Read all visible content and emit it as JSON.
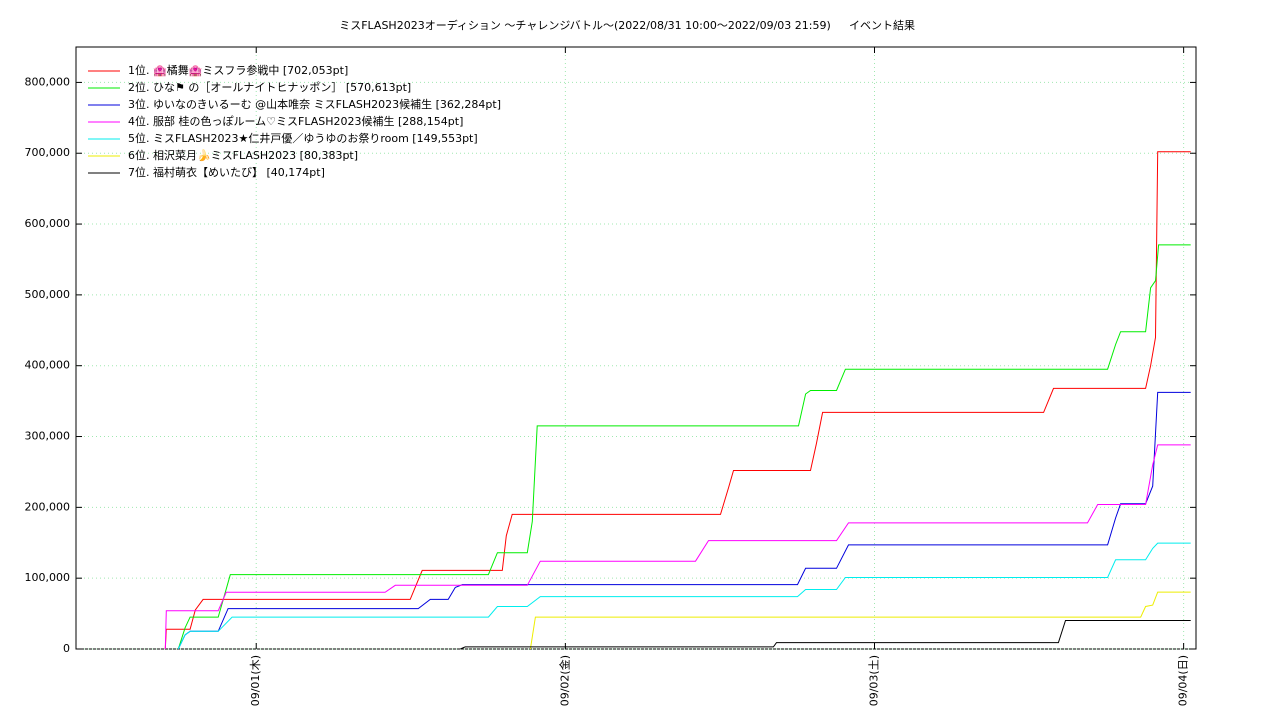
{
  "chart_data": {
    "type": "line",
    "title": "ミスFLASH2023オーディション 〜チャレンジバトル〜(2022/08/31 10:00〜2022/09/03 21:59)",
    "subtitle": "イベント結果",
    "xlim": [
      0.417,
      4.04
    ],
    "xticks": [
      {
        "value": 1,
        "label": "09/01(木)"
      },
      {
        "value": 2,
        "label": "09/02(金)"
      },
      {
        "value": 3,
        "label": "09/03(土)"
      },
      {
        "value": 4,
        "label": "09/04(日)"
      }
    ],
    "ylim": [
      0,
      850000
    ],
    "yticks": [
      {
        "value": 0,
        "label": "0"
      },
      {
        "value": 100000,
        "label": "100,000"
      },
      {
        "value": 200000,
        "label": "200,000"
      },
      {
        "value": 300000,
        "label": "300,000"
      },
      {
        "value": 400000,
        "label": "400,000"
      },
      {
        "value": 500000,
        "label": "500,000"
      },
      {
        "value": 600000,
        "label": "600,000"
      },
      {
        "value": 700000,
        "label": "700,000"
      },
      {
        "value": 800000,
        "label": "800,000"
      }
    ],
    "grid": true,
    "legend": "top-left",
    "series": [
      {
        "name": "1位. 🏩橘舞🏩ミスフラ参戦中 [702,053pt]",
        "color": "#ff0000",
        "x": [
          0.706,
          0.709,
          0.786,
          0.803,
          0.828,
          1.498,
          1.537,
          1.796,
          1.809,
          1.828,
          2.502,
          2.528,
          2.544,
          2.793,
          2.812,
          2.832,
          3.547,
          3.579,
          3.877,
          3.893,
          3.909,
          3.916,
          4.023
        ],
        "values": [
          0,
          28000,
          28000,
          55000,
          70000,
          70000,
          111000,
          111000,
          160000,
          190000,
          190000,
          228000,
          252000,
          252000,
          290000,
          334000,
          334000,
          368000,
          368000,
          400000,
          440000,
          702053,
          702053
        ]
      },
      {
        "name": "2位. ひな⚑ の［オールナイトヒナッポン］ [570,613pt]",
        "color": "#00ee00",
        "x": [
          0.748,
          0.77,
          0.786,
          0.877,
          0.9,
          0.916,
          1.751,
          1.78,
          1.877,
          1.893,
          1.909,
          2.754,
          2.777,
          2.793,
          2.877,
          2.906,
          3.754,
          3.78,
          3.796,
          3.877,
          3.893,
          3.909,
          3.919,
          4.023
        ],
        "values": [
          0,
          30000,
          45000,
          45000,
          80000,
          105000,
          105000,
          136000,
          136000,
          180000,
          315000,
          315000,
          360000,
          365000,
          365000,
          395000,
          395000,
          430000,
          448000,
          448000,
          510000,
          520000,
          570613,
          570613
        ]
      },
      {
        "name": "3位. ゆいなのきいるーむ @山本唯奈 ミスFLASH2023候補生 [362,284pt]",
        "color": "#0000dd",
        "x": [
          0.748,
          0.77,
          0.786,
          0.877,
          0.909,
          1.524,
          1.563,
          1.621,
          1.644,
          1.667,
          2.751,
          2.777,
          2.877,
          2.916,
          3.754,
          3.78,
          3.796,
          3.877,
          3.9,
          3.916,
          4.023
        ],
        "values": [
          0,
          20000,
          25000,
          25000,
          57000,
          57000,
          70000,
          70000,
          87000,
          91000,
          91000,
          114000,
          114000,
          147000,
          147000,
          185000,
          205000,
          205000,
          230000,
          362284,
          362284
        ]
      },
      {
        "name": "4位. 服部 桂の色っぽルーム♡ミスFLASH2023候補生 [288,154pt]",
        "color": "#ff00ff",
        "x": [
          0.706,
          0.709,
          0.877,
          0.903,
          1.417,
          1.45,
          1.877,
          1.919,
          2.421,
          2.463,
          2.877,
          2.916,
          3.689,
          3.722,
          3.877,
          3.9,
          3.916,
          4.023
        ],
        "values": [
          0,
          54000,
          54000,
          80000,
          80000,
          90000,
          90000,
          124000,
          124000,
          153000,
          153000,
          178000,
          178000,
          204000,
          204000,
          260000,
          288154,
          288154
        ]
      },
      {
        "name": "5位. ミスFLASH2023★仁井戸優／ゆうゆのお祭りroom [149,553pt]",
        "color": "#00eeee",
        "x": [
          0.748,
          0.77,
          0.786,
          0.877,
          0.922,
          1.751,
          1.78,
          1.877,
          1.919,
          2.751,
          2.777,
          2.877,
          2.906,
          3.754,
          3.78,
          3.877,
          3.9,
          3.916,
          4.023
        ],
        "values": [
          0,
          20000,
          25000,
          25000,
          45000,
          45000,
          60000,
          60000,
          74000,
          74000,
          84000,
          84000,
          101000,
          101000,
          126000,
          126000,
          142000,
          149553,
          149553
        ]
      },
      {
        "name": "6位. 相沢菜月🍌ミスFLASH2023 [80,383pt]",
        "color": "#eeee00",
        "x": [
          1.887,
          1.903,
          3.861,
          3.877,
          3.9,
          3.916,
          4.023
        ],
        "values": [
          0,
          45000,
          45000,
          60000,
          62000,
          80383,
          80383
        ]
      },
      {
        "name": "7位. 福村萌衣【めいたび】 [40,174pt]",
        "color": "#000000",
        "x": [
          1.66,
          1.676,
          2.673,
          2.683,
          3.595,
          3.618,
          4.023
        ],
        "values": [
          0,
          3000,
          3000,
          9000,
          9000,
          40174,
          40174
        ]
      }
    ]
  }
}
